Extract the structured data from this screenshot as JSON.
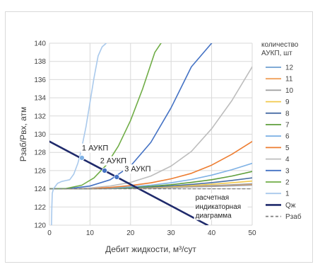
{
  "chart_data": {
    "type": "line",
    "title": "",
    "xlabel": "Дебит жидкости, м³/сут",
    "ylabel": "Рзаб/Рвх, атм",
    "xlim": [
      0,
      50
    ],
    "ylim": [
      120,
      140
    ],
    "x_ticks": [
      0,
      10,
      20,
      30,
      40,
      50
    ],
    "y_ticks": [
      120,
      122,
      124,
      126,
      128,
      130,
      132,
      134,
      136,
      138,
      140
    ],
    "grid": "both",
    "legend": {
      "title_lines": [
        "количество",
        "АУКП, шт"
      ],
      "placement": "right",
      "entries": [
        "12",
        "11",
        "10",
        "9",
        "8",
        "7",
        "6",
        "5",
        "4",
        "3",
        "2",
        "1",
        "Qж",
        "Рзаб"
      ]
    },
    "series": [
      {
        "name": "12",
        "color": "#6f9fd0",
        "x": [
          0,
          5,
          10,
          15,
          20,
          25,
          30,
          35,
          40,
          45,
          50
        ],
        "y": [
          124,
          124,
          124,
          124.02,
          124.05,
          124.09,
          124.14,
          124.2,
          124.26,
          124.33,
          124.4
        ]
      },
      {
        "name": "11",
        "color": "#f0a05a",
        "x": [
          0,
          5,
          10,
          15,
          20,
          25,
          30,
          35,
          40,
          45,
          50
        ],
        "y": [
          124,
          124,
          124.01,
          124.03,
          124.06,
          124.1,
          124.16,
          124.23,
          124.3,
          124.38,
          124.46
        ]
      },
      {
        "name": "10",
        "color": "#9e9e9e",
        "x": [
          0,
          5,
          10,
          15,
          20,
          25,
          30,
          35,
          40,
          45,
          50
        ],
        "y": [
          124,
          124,
          124.01,
          124.03,
          124.07,
          124.12,
          124.19,
          124.27,
          124.35,
          124.44,
          124.55
        ]
      },
      {
        "name": "9",
        "color": "#f2c94c",
        "x": [
          0,
          5,
          10,
          15,
          20,
          25,
          30,
          35,
          40,
          45,
          50
        ],
        "y": [
          124,
          124,
          124.01,
          124.04,
          124.09,
          124.16,
          124.25,
          124.36,
          124.5,
          124.66,
          124.85
        ]
      },
      {
        "name": "8",
        "color": "#4a6fa5",
        "x": [
          0,
          5,
          10,
          15,
          20,
          25,
          30,
          35,
          40,
          45,
          50
        ],
        "y": [
          124,
          124,
          124.02,
          124.05,
          124.11,
          124.2,
          124.32,
          124.48,
          124.68,
          124.92,
          125.2
        ]
      },
      {
        "name": "7",
        "color": "#5f9e3c",
        "x": [
          0,
          5,
          10,
          15,
          20,
          25,
          30,
          35,
          40,
          45,
          50
        ],
        "y": [
          124,
          124,
          124.02,
          124.07,
          124.15,
          124.28,
          124.45,
          124.7,
          125.0,
          125.4,
          125.9
        ]
      },
      {
        "name": "6",
        "color": "#7fb2e5",
        "x": [
          0,
          5,
          10,
          15,
          20,
          25,
          30,
          35,
          40,
          45,
          50
        ],
        "y": [
          124,
          124,
          124.03,
          124.1,
          124.22,
          124.4,
          124.66,
          125.02,
          125.5,
          126.1,
          126.8
        ]
      },
      {
        "name": "5",
        "color": "#ed7d31",
        "x": [
          0,
          5,
          10,
          15,
          20,
          25,
          30,
          35,
          40,
          45,
          50
        ],
        "y": [
          124,
          124,
          124.05,
          124.15,
          124.35,
          124.65,
          125.1,
          125.7,
          126.6,
          127.8,
          129.2
        ]
      },
      {
        "name": "4",
        "color": "#bdbdbd",
        "x": [
          0,
          5,
          10,
          15,
          20,
          25,
          30,
          35,
          40,
          45,
          50
        ],
        "y": [
          124,
          124.01,
          124.1,
          124.3,
          124.7,
          125.4,
          126.5,
          128.1,
          130.6,
          133.7,
          137.4
        ]
      },
      {
        "name": "3",
        "color": "#4472c4",
        "x": [
          0,
          5,
          10,
          15,
          20,
          25,
          30,
          35,
          40
        ],
        "y": [
          124,
          124.03,
          124.3,
          125.0,
          126.5,
          129.1,
          132.9,
          137.4,
          140.0
        ]
      },
      {
        "name": "2",
        "color": "#70ad47",
        "x": [
          0,
          4,
          8,
          11,
          14,
          17,
          20,
          23,
          26,
          27.5
        ],
        "y": [
          124,
          124.02,
          124.4,
          125.2,
          126.6,
          128.7,
          131.5,
          135.0,
          139.0,
          140.0
        ]
      },
      {
        "name": "1",
        "color": "#a9c9ec",
        "x": [
          0.5,
          0.6,
          0.7,
          1,
          2,
          3,
          4,
          5,
          6,
          7,
          7.5,
          8,
          9,
          10,
          11,
          12,
          13,
          14
        ],
        "y": [
          120,
          122,
          123.5,
          124,
          124.6,
          124.8,
          124.9,
          125,
          125.6,
          126.8,
          127.6,
          128.6,
          130.8,
          133.5,
          136.2,
          138.6,
          139.6,
          140
        ]
      },
      {
        "name": "Qж",
        "color": "#1f2a6b",
        "x": [
          0,
          39
        ],
        "y": [
          129.2,
          120
        ]
      },
      {
        "name": "Рзаб",
        "color": "#808080",
        "dashed": true,
        "x": [
          0,
          50
        ],
        "y": [
          124,
          124
        ]
      }
    ],
    "markers": [
      {
        "x": 8.0,
        "y": 127.4,
        "color": "#7fb2e5"
      },
      {
        "x": 13.6,
        "y": 126.0,
        "color": "#4472c4"
      },
      {
        "x": 16.6,
        "y": 125.3,
        "color": "#4472c4"
      }
    ],
    "annotations": [
      {
        "text": "1 АУКП",
        "x": 8.0,
        "y": 128.2
      },
      {
        "text": "2 АУКП",
        "x": 12.5,
        "y": 126.8
      },
      {
        "text": "3 АУКП",
        "x": 18.5,
        "y": 125.9
      },
      {
        "text": "расчетная",
        "x": 36,
        "y": 122.8
      },
      {
        "text": "индикаторная",
        "x": 36,
        "y": 121.8
      },
      {
        "text": "диаграмма",
        "x": 36,
        "y": 120.8
      }
    ]
  }
}
